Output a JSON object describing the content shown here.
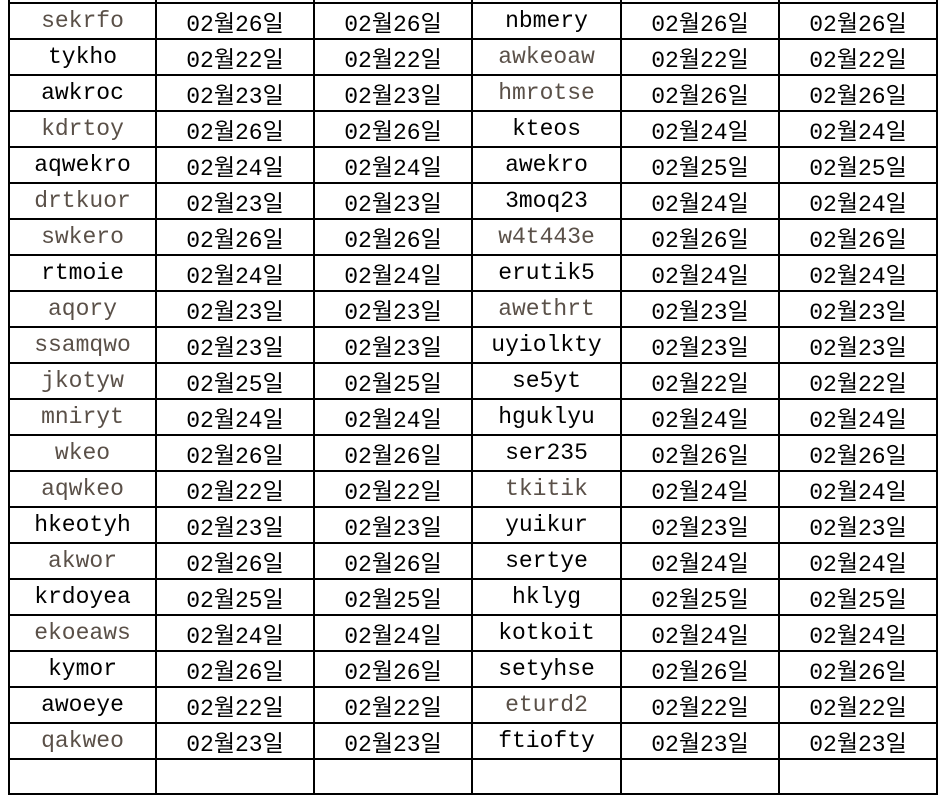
{
  "sheet": {
    "colors": {
      "text": "#000000",
      "muted_text": "#5a5048",
      "grid": "#000000"
    },
    "rows": [
      {
        "cells": [
          "",
          "",
          "",
          "",
          "",
          ""
        ],
        "muted": []
      },
      {
        "cells": [
          "sekrfo",
          "02월26일",
          "02월26일",
          "nbmery",
          "02월26일",
          "02월26일"
        ],
        "muted": [
          0
        ]
      },
      {
        "cells": [
          "tykho",
          "02월22일",
          "02월22일",
          "awkeoaw",
          "02월22일",
          "02월22일"
        ],
        "muted": [
          3
        ]
      },
      {
        "cells": [
          "awkroc",
          "02월23일",
          "02월23일",
          "hmrotse",
          "02월26일",
          "02월26일"
        ],
        "muted": [
          3
        ]
      },
      {
        "cells": [
          "kdrtoy",
          "02월26일",
          "02월26일",
          "kteos",
          "02월24일",
          "02월24일"
        ],
        "muted": [
          0
        ]
      },
      {
        "cells": [
          "aqwekro",
          "02월24일",
          "02월24일",
          "awekro",
          "02월25일",
          "02월25일"
        ],
        "muted": []
      },
      {
        "cells": [
          "drtkuor",
          "02월23일",
          "02월23일",
          "3moq23",
          "02월24일",
          "02월24일"
        ],
        "muted": [
          0
        ]
      },
      {
        "cells": [
          "swkero",
          "02월26일",
          "02월26일",
          "w4t443e",
          "02월26일",
          "02월26일"
        ],
        "muted": [
          0,
          3
        ]
      },
      {
        "cells": [
          "rtmoie",
          "02월24일",
          "02월24일",
          "erutik5",
          "02월24일",
          "02월24일"
        ],
        "muted": []
      },
      {
        "cells": [
          "aqory",
          "02월23일",
          "02월23일",
          "awethrt",
          "02월23일",
          "02월23일"
        ],
        "muted": [
          0,
          3
        ]
      },
      {
        "cells": [
          "ssamqwo",
          "02월23일",
          "02월23일",
          "uyiolkty",
          "02월23일",
          "02월23일"
        ],
        "muted": [
          0
        ]
      },
      {
        "cells": [
          "jkotyw",
          "02월25일",
          "02월25일",
          "se5yt",
          "02월22일",
          "02월22일"
        ],
        "muted": [
          0
        ]
      },
      {
        "cells": [
          "mniryt",
          "02월24일",
          "02월24일",
          "hguklyu",
          "02월24일",
          "02월24일"
        ],
        "muted": [
          0
        ]
      },
      {
        "cells": [
          "wkeo",
          "02월26일",
          "02월26일",
          "ser235",
          "02월26일",
          "02월26일"
        ],
        "muted": [
          0
        ]
      },
      {
        "cells": [
          "aqwkeo",
          "02월22일",
          "02월22일",
          "tkitik",
          "02월24일",
          "02월24일"
        ],
        "muted": [
          0,
          3
        ]
      },
      {
        "cells": [
          "hkeotyh",
          "02월23일",
          "02월23일",
          "yuikur",
          "02월23일",
          "02월23일"
        ],
        "muted": []
      },
      {
        "cells": [
          "akwor",
          "02월26일",
          "02월26일",
          "sertye",
          "02월24일",
          "02월24일"
        ],
        "muted": [
          0
        ]
      },
      {
        "cells": [
          "krdoyea",
          "02월25일",
          "02월25일",
          "hklyg",
          "02월25일",
          "02월25일"
        ],
        "muted": []
      },
      {
        "cells": [
          "ekoeaws",
          "02월24일",
          "02월24일",
          "kotkoit",
          "02월24일",
          "02월24일"
        ],
        "muted": [
          0
        ]
      },
      {
        "cells": [
          "kymor",
          "02월26일",
          "02월26일",
          "setyhse",
          "02월26일",
          "02월26일"
        ],
        "muted": []
      },
      {
        "cells": [
          "awoeye",
          "02월22일",
          "02월22일",
          "eturd2",
          "02월22일",
          "02월22일"
        ],
        "muted": [
          3
        ]
      },
      {
        "cells": [
          "qakweo",
          "02월23일",
          "02월23일",
          "ftiofty",
          "02월23일",
          "02월23일"
        ],
        "muted": [
          0
        ]
      },
      {
        "cells": [
          "",
          "",
          "",
          "",
          "",
          ""
        ],
        "muted": []
      }
    ]
  }
}
